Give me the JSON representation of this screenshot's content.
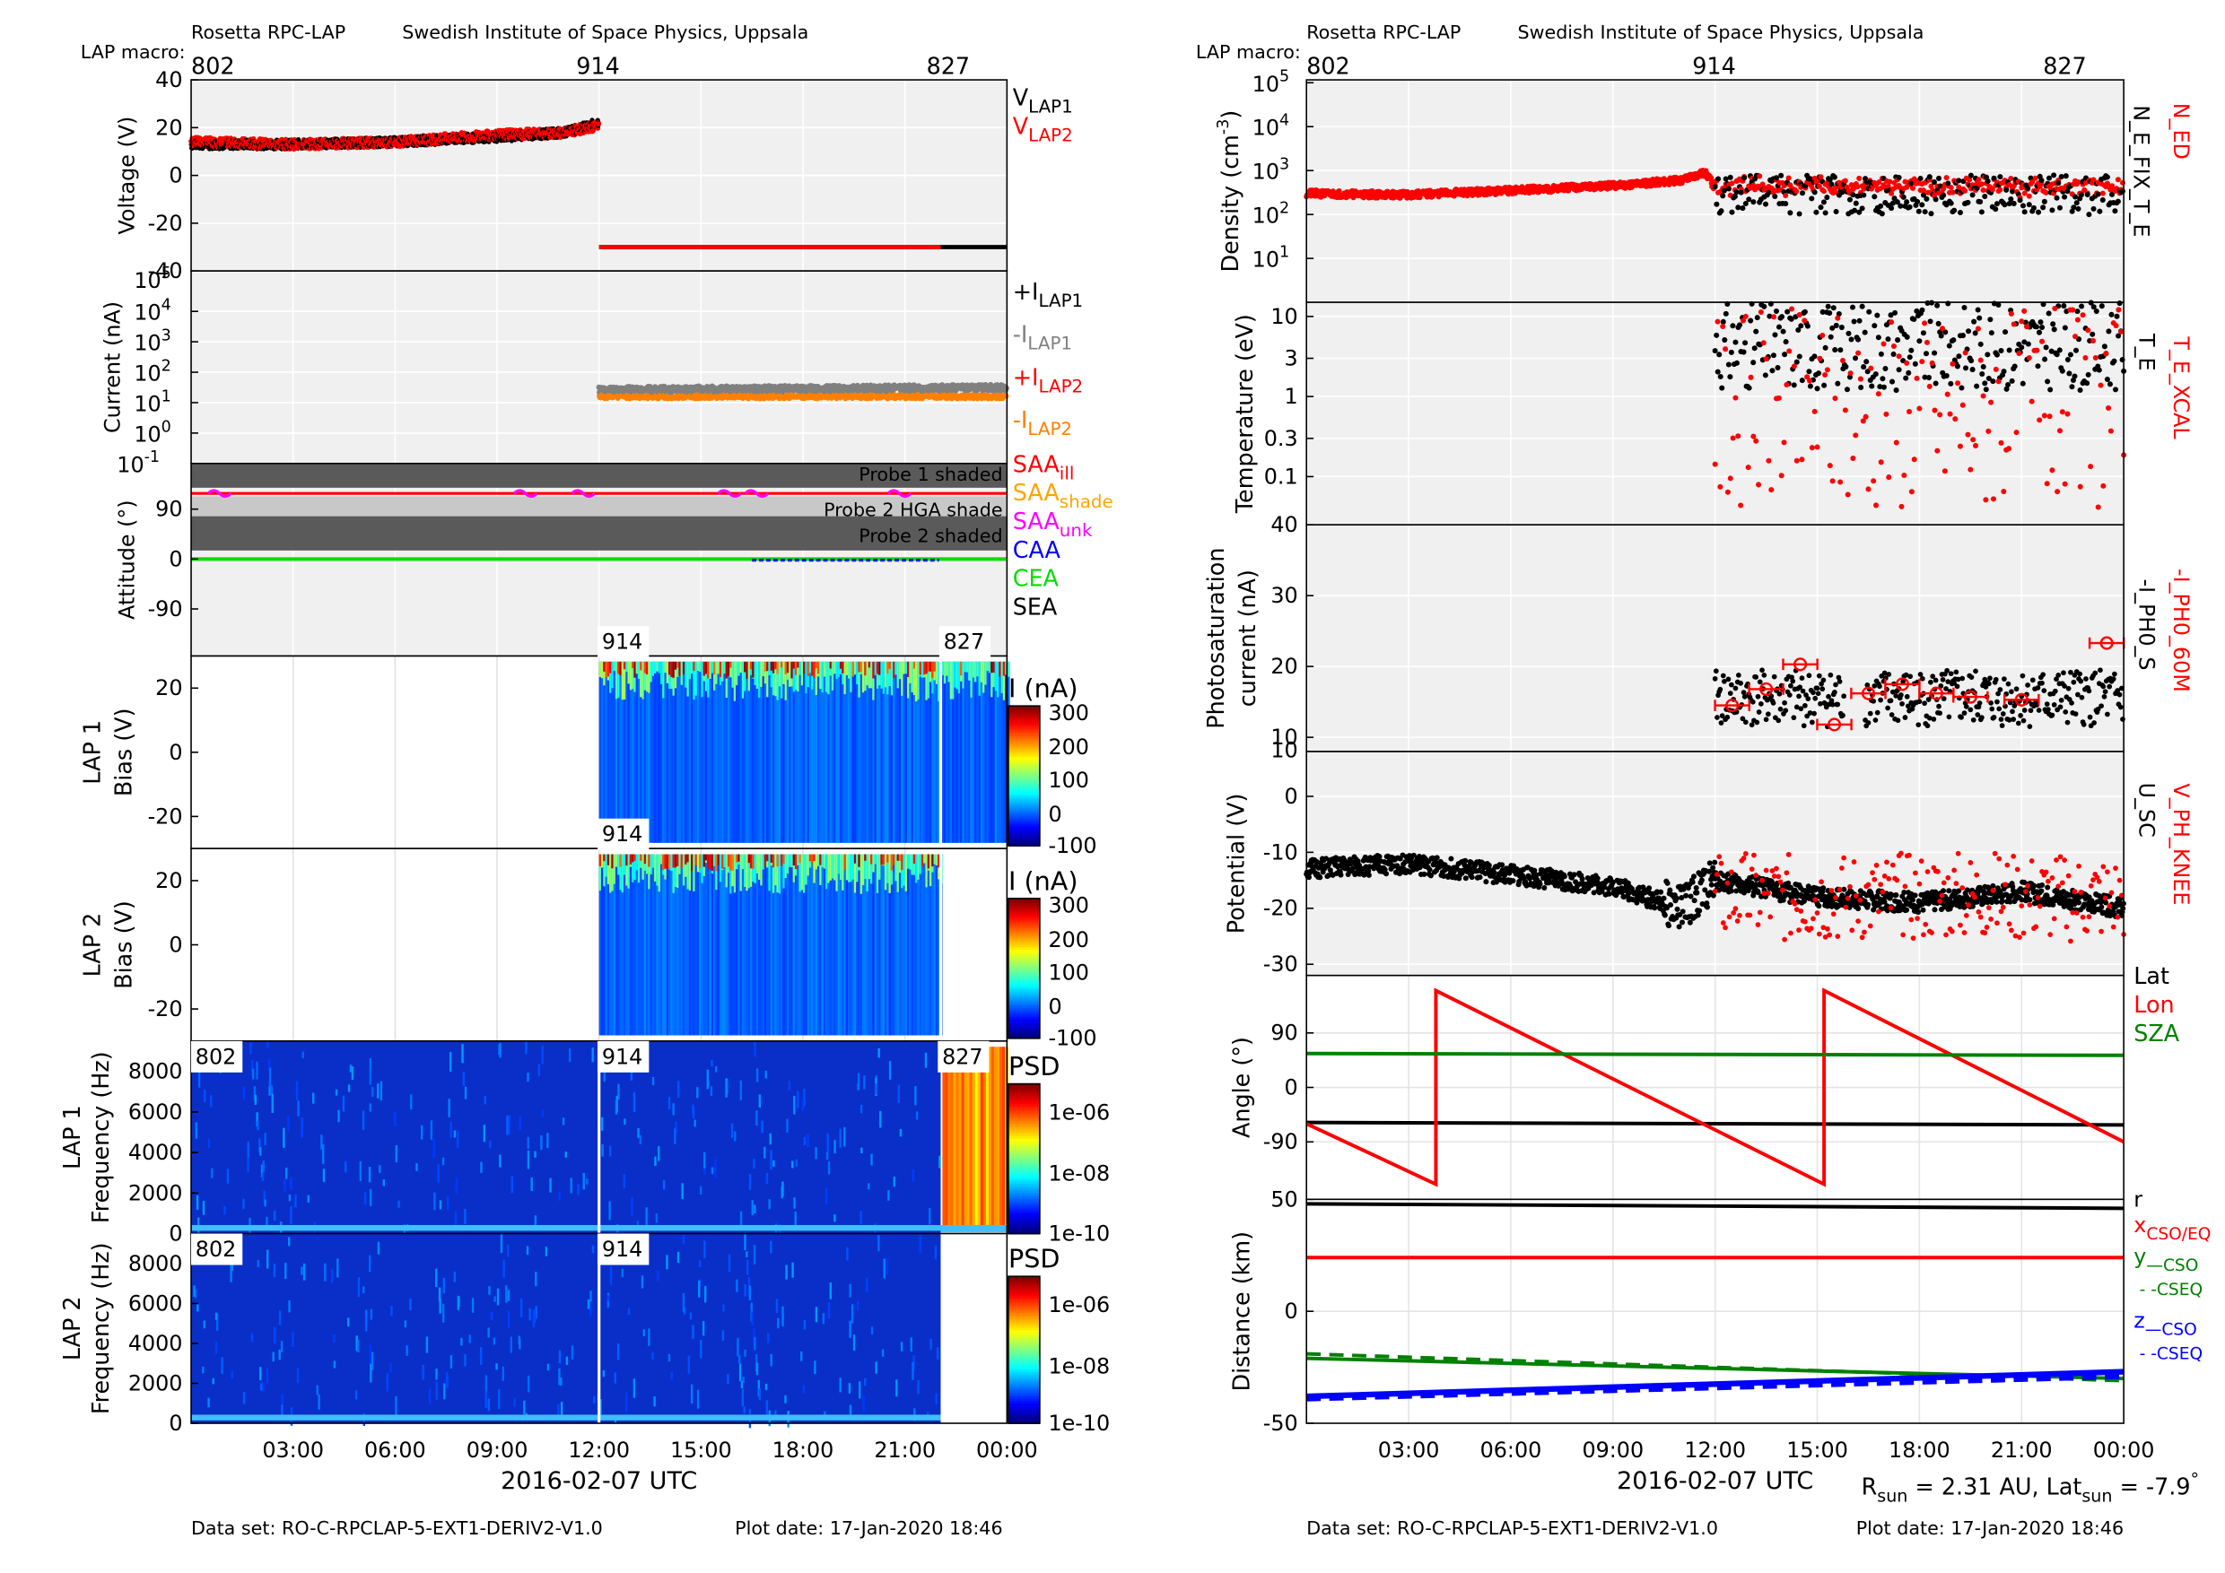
{
  "left": {
    "header": {
      "mission": "Rosetta RPC-LAP",
      "institute": "Swedish Institute of Space Physics, Uppsala",
      "macro_label": "LAP macro:",
      "macros": [
        "802",
        "914",
        "827"
      ]
    },
    "xaxis": {
      "label": "2016-02-07 UTC",
      "ticks": [
        "03:00",
        "06:00",
        "09:00",
        "12:00",
        "15:00",
        "18:00",
        "21:00",
        "00:00"
      ]
    },
    "footer": {
      "dataset": "Data set: RO-C-RPCLAP-5-EXT1-DERIV2-V1.0",
      "plotdate": "Plot date: 17-Jan-2020 18:46"
    }
  },
  "right": {
    "header": {
      "mission": "Rosetta RPC-LAP",
      "institute": "Swedish Institute of Space Physics, Uppsala",
      "macro_label": "LAP macro:",
      "macros": [
        "802",
        "914",
        "827"
      ]
    },
    "xaxis": {
      "label": "2016-02-07 UTC",
      "ticks": [
        "03:00",
        "06:00",
        "09:00",
        "12:00",
        "15:00",
        "18:00",
        "21:00",
        "00:00"
      ]
    },
    "rsun_text": "R",
    "rsun_sub": "sun",
    "rsun_val": " = 2.31 AU, Lat",
    "latsun_sub": "sun",
    "latsun_val": " = -7.9",
    "deg": "°",
    "footer": {
      "dataset": "Data set: RO-C-RPCLAP-5-EXT1-DERIV2-V1.0",
      "plotdate": "Plot date: 17-Jan-2020 18:46"
    }
  },
  "panels": {
    "voltage": {
      "ylabel": "Voltage (V)",
      "ticks": [
        "40",
        "20",
        "0",
        "-20",
        "-40"
      ],
      "legend": [
        {
          "main": "V",
          "sub": "LAP1",
          "color": "#000000"
        },
        {
          "main": "V",
          "sub": "LAP2",
          "color": "#ff0000"
        }
      ]
    },
    "current": {
      "ylabel": "Current (nA)",
      "ticks": [
        {
          "b": "10",
          "e": "4"
        },
        {
          "b": "10",
          "e": "3"
        },
        {
          "b": "10",
          "e": "2"
        },
        {
          "b": "10",
          "e": "1"
        },
        {
          "b": "10",
          "e": "0"
        },
        {
          "b": "10",
          "e": "-1"
        }
      ],
      "top_tick": {
        "b": "10",
        "e": "5"
      },
      "legend": [
        {
          "main": "+I",
          "sub": "LAP1",
          "color": "#000000"
        },
        {
          "main": "-I",
          "sub": "LAP1",
          "color": "#808080"
        },
        {
          "main": "+I",
          "sub": "LAP2",
          "color": "#ff0000"
        },
        {
          "main": "-I",
          "sub": "LAP2",
          "color": "#ff8000"
        }
      ]
    },
    "attitude": {
      "ylabel": "Attitude (°)",
      "ticks": [
        "90",
        "0",
        "-90"
      ],
      "bands": [
        "Probe 1 shaded",
        "Probe 2 HGA shade",
        "Probe 2 shaded"
      ],
      "legend": [
        {
          "main": "SAA",
          "sub": "ill",
          "color": "#ff0000"
        },
        {
          "main": "SAA",
          "sub": "shade",
          "color": "#ffa500"
        },
        {
          "main": "SAA",
          "sub": "unk",
          "color": "#ff00ff"
        },
        {
          "main": "CAA",
          "sub": "",
          "color": "#0000ff"
        },
        {
          "main": "CEA",
          "sub": "",
          "color": "#00dd00"
        },
        {
          "main": "SEA",
          "sub": "",
          "color": "#000000"
        }
      ]
    },
    "lap1bias": {
      "ylabel1": "LAP 1",
      "ylabel2": "Bias (V)",
      "ticks": [
        "20",
        "0",
        "-20"
      ],
      "cbar_title": "I (nA)",
      "cbar_ticks": [
        "300",
        "200",
        "100",
        "0",
        "-100"
      ],
      "tags": [
        "914",
        "827"
      ]
    },
    "lap2bias": {
      "ylabel1": "LAP 2",
      "ylabel2": "Bias (V)",
      "ticks": [
        "20",
        "0",
        "-20"
      ],
      "cbar_title": "I (nA)",
      "cbar_ticks": [
        "300",
        "200",
        "100",
        "0",
        "-100"
      ],
      "tags": [
        "914"
      ]
    },
    "lap1freq": {
      "ylabel1": "LAP 1",
      "ylabel2": "Frequency (Hz)",
      "ticks": [
        "8000",
        "6000",
        "4000",
        "2000",
        "0"
      ],
      "cbar_title": "PSD",
      "cbar_ticks": [
        "1e-06",
        "1e-08",
        "1e-10"
      ],
      "tags": [
        "802",
        "914",
        "827"
      ]
    },
    "lap2freq": {
      "ylabel1": "LAP 2",
      "ylabel2": "Frequency (Hz)",
      "ticks": [
        "8000",
        "6000",
        "4000",
        "2000",
        "0"
      ],
      "cbar_title": "PSD",
      "cbar_ticks": [
        "1e-06",
        "1e-08",
        "1e-10"
      ],
      "tags": [
        "802",
        "914"
      ]
    },
    "density": {
      "ylabel": "Density (cm",
      "ylabel_sup": "-3",
      "ylabel_end": ")",
      "ticks": [
        {
          "b": "10",
          "e": "5"
        },
        {
          "b": "10",
          "e": "4"
        },
        {
          "b": "10",
          "e": "3"
        },
        {
          "b": "10",
          "e": "2"
        },
        {
          "b": "10",
          "e": "1"
        }
      ],
      "legend": [
        {
          "text": "N_ED",
          "color": "#ff0000"
        },
        {
          "text": "N_E_FIX_T_E",
          "color": "#000000"
        }
      ]
    },
    "temperature": {
      "ylabel": "Temperature (eV)",
      "ticks": [
        "10",
        "3",
        "1",
        "0.3",
        "0.1",
        "40"
      ],
      "legend": [
        {
          "text": "T_E_XCAL",
          "color": "#ff0000"
        },
        {
          "text": "T_E",
          "color": "#000000"
        }
      ]
    },
    "photo": {
      "ylabel1": "Photosaturation",
      "ylabel2": "current (nA)",
      "ticks": [
        "30",
        "20",
        "10"
      ],
      "bottom_tick": "10",
      "legend": [
        {
          "text": "-I_PH0_60M",
          "color": "#ff0000"
        },
        {
          "text": "-I_PH0_S",
          "color": "#000000"
        }
      ]
    },
    "potential": {
      "ylabel": "Potential (V)",
      "ticks": [
        "0",
        "-10",
        "-20",
        "-30"
      ],
      "legend": [
        {
          "text": "V_PH_KNEE",
          "color": "#ff0000"
        },
        {
          "text": "U_SC",
          "color": "#000000"
        }
      ]
    },
    "angle": {
      "ylabel": "Angle (°)",
      "ticks": [
        "90",
        "0",
        "-90"
      ],
      "legend": [
        {
          "text": "Lat",
          "color": "#000000"
        },
        {
          "text": "Lon",
          "color": "#ff0000"
        },
        {
          "text": "SZA",
          "color": "#008000"
        }
      ]
    },
    "distance": {
      "ylabel": "Distance (km)",
      "ticks": [
        "50",
        "0",
        "-50"
      ],
      "legend": [
        {
          "main": "r",
          "sub": "",
          "color": "#000000"
        },
        {
          "main": "x",
          "sub": "CSO/EQ",
          "color": "#ff0000"
        },
        {
          "main": "y",
          "sub": "—CSO",
          "color": "#008000"
        },
        {
          "main": "",
          "sub": "- -CSEQ",
          "color": "#008000"
        },
        {
          "main": "z",
          "sub": "—CSO",
          "color": "#0000ff"
        },
        {
          "main": "",
          "sub": "- -CSEQ",
          "color": "#0000ff"
        }
      ]
    }
  },
  "chart_data": [
    {
      "type": "scatter",
      "panel": "voltage",
      "xlabel": "2016-02-07 UTC",
      "ylabel": "Voltage (V)",
      "ylim": [
        -40,
        40
      ],
      "series": [
        {
          "name": "V_LAP1",
          "x_hours": [
            0,
            3,
            6,
            9,
            11,
            12,
            12.01,
            22
          ],
          "values": [
            13,
            13,
            14,
            16,
            18,
            22,
            -30,
            -30
          ]
        },
        {
          "name": "V_LAP2",
          "x_hours": [
            0,
            3,
            6,
            9,
            11,
            12,
            12.01,
            22
          ],
          "values": [
            14,
            13,
            14,
            17,
            18,
            21,
            -30,
            -30
          ]
        }
      ]
    },
    {
      "type": "scatter",
      "panel": "current",
      "xlabel": "2016-02-07 UTC",
      "ylabel": "Current (nA)",
      "ylim": [
        0.1,
        100000
      ],
      "yscale": "log",
      "series": [
        {
          "name": "-I_LAP1",
          "x_hours": [
            12,
            15,
            18,
            21,
            24
          ],
          "values": [
            20,
            22,
            25,
            25,
            30
          ]
        },
        {
          "name": "-I_LAP2",
          "x_hours": [
            12,
            15,
            18,
            21,
            24
          ],
          "values": [
            16,
            17,
            18,
            19,
            20
          ]
        }
      ]
    },
    {
      "type": "line",
      "panel": "attitude",
      "xlabel": "2016-02-07 UTC",
      "ylabel": "Attitude (°)",
      "ylim": [
        -180,
        180
      ],
      "series": [
        {
          "name": "SAA_ill",
          "x_hours": [
            0,
            24
          ],
          "values": [
            120,
            120
          ]
        },
        {
          "name": "CEA",
          "x_hours": [
            0,
            24
          ],
          "values": [
            0,
            0
          ]
        }
      ]
    },
    {
      "type": "heatmap",
      "panel": "lap1bias",
      "ylabel": "Bias (V)",
      "ylim": [
        -30,
        30
      ],
      "clim": [
        -100,
        350
      ],
      "x_hours": [
        12,
        24
      ]
    },
    {
      "type": "heatmap",
      "panel": "lap2bias",
      "ylabel": "Bias (V)",
      "ylim": [
        -30,
        30
      ],
      "clim": [
        -100,
        350
      ],
      "x_hours": [
        12,
        22
      ]
    },
    {
      "type": "heatmap",
      "panel": "lap1freq",
      "ylabel": "Frequency (Hz)",
      "ylim": [
        0,
        9500
      ],
      "x_hours": [
        0,
        24
      ]
    },
    {
      "type": "heatmap",
      "panel": "lap2freq",
      "ylabel": "Frequency (Hz)",
      "ylim": [
        0,
        9500
      ],
      "x_hours": [
        0,
        22
      ]
    },
    {
      "type": "scatter",
      "panel": "density",
      "ylabel": "Density (cm-3)",
      "yscale": "log",
      "ylim": [
        1,
        100000
      ],
      "series": [
        {
          "name": "N_ED",
          "x_hours": [
            0,
            3,
            6,
            9,
            11,
            11.7,
            12,
            15,
            18,
            21,
            24
          ],
          "values": [
            300,
            280,
            350,
            450,
            600,
            900,
            350,
            400,
            450,
            400,
            450
          ]
        },
        {
          "name": "N_E_FIX_T_E",
          "x_hours": [
            12,
            15,
            18,
            21,
            24
          ],
          "values": [
            150,
            200,
            250,
            200,
            300
          ]
        }
      ]
    },
    {
      "type": "scatter",
      "panel": "temperature",
      "ylabel": "Temperature (eV)",
      "yscale": "log",
      "ylim": [
        0.025,
        15
      ],
      "series": [
        {
          "name": "T_E_XCAL",
          "x_hours": [
            12,
            15,
            18,
            21,
            24
          ],
          "values": [
            3,
            0.2,
            0.15,
            0.2,
            3
          ]
        },
        {
          "name": "T_E",
          "x_hours": [
            12,
            15,
            18,
            21,
            24
          ],
          "values": [
            4,
            3,
            3,
            4,
            3
          ]
        }
      ]
    },
    {
      "type": "scatter",
      "panel": "photo",
      "ylabel": "Photosaturation current (nA)",
      "ylim": [
        10,
        40
      ],
      "series": [
        {
          "name": "-I_PH0_60M",
          "x_hours": [
            12.5,
            13.5,
            14.5,
            15.5,
            16.5,
            17.5,
            18.5,
            19.5,
            21,
            23.5
          ],
          "values": [
            14.5,
            16.8,
            20.3,
            11.8,
            16.2,
            17.5,
            16.2,
            15.7,
            15.3,
            23.3
          ]
        },
        {
          "name": "-I_PH0_S",
          "x_hours": [
            12,
            15,
            18,
            21,
            24
          ],
          "values": [
            14,
            15,
            16,
            15,
            18
          ]
        }
      ]
    },
    {
      "type": "scatter",
      "panel": "potential",
      "ylabel": "Potential (V)",
      "ylim": [
        -32,
        8
      ],
      "series": [
        {
          "name": "U_SC",
          "x_hours": [
            0,
            3,
            6,
            9,
            11,
            12,
            15,
            18,
            21,
            24
          ],
          "values": [
            -13,
            -12,
            -14,
            -16,
            -20,
            -15,
            -18,
            -19,
            -17,
            -20
          ]
        },
        {
          "name": "V_PH_KNEE",
          "x_hours": [
            12,
            15,
            18,
            21,
            24
          ],
          "values": [
            -15,
            -20,
            -22,
            -18,
            -22
          ]
        }
      ]
    },
    {
      "type": "line",
      "panel": "angle",
      "ylabel": "Angle (°)",
      "ylim": [
        -185,
        185
      ],
      "series": [
        {
          "name": "Lat",
          "x_hours": [
            0,
            24
          ],
          "values": [
            -58,
            -62
          ]
        },
        {
          "name": "Lon",
          "x_hours": [
            0,
            3.8,
            3.8,
            15.2,
            15.2,
            24
          ],
          "values": [
            -60,
            -160,
            160,
            -160,
            160,
            -90
          ]
        },
        {
          "name": "SZA",
          "x_hours": [
            0,
            24
          ],
          "values": [
            56,
            53
          ]
        }
      ]
    },
    {
      "type": "line",
      "panel": "distance",
      "ylabel": "Distance (km)",
      "ylim": [
        -50,
        50
      ],
      "series": [
        {
          "name": "r",
          "x_hours": [
            0,
            24
          ],
          "values": [
            48,
            46
          ]
        },
        {
          "name": "x",
          "x_hours": [
            0,
            24
          ],
          "values": [
            24,
            24
          ]
        },
        {
          "name": "y CSO",
          "x_hours": [
            0,
            24
          ],
          "values": [
            -21,
            -30
          ]
        },
        {
          "name": "y CSEQ",
          "x_hours": [
            0,
            24
          ],
          "values": [
            -19,
            -31
          ]
        },
        {
          "name": "z CSO",
          "x_hours": [
            0,
            24
          ],
          "values": [
            -38,
            -27
          ]
        },
        {
          "name": "z CSEQ",
          "x_hours": [
            0,
            24
          ],
          "values": [
            -39,
            -29
          ]
        }
      ]
    }
  ]
}
